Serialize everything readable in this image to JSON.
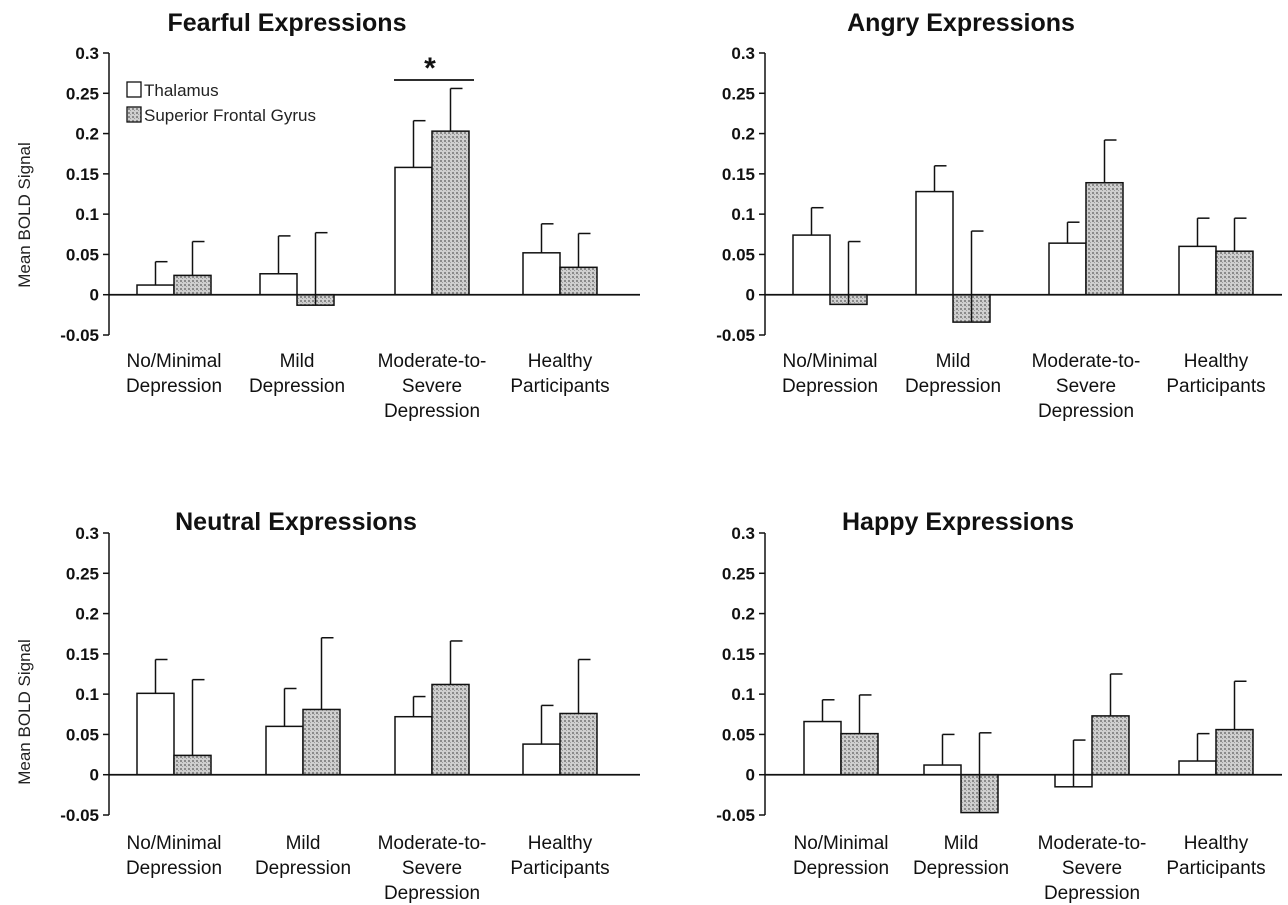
{
  "chart_data": [
    {
      "type": "bar",
      "title": "Fearful Expressions",
      "ylabel": "Mean BOLD Signal",
      "ylim": [
        -0.05,
        0.3
      ],
      "yticks": [
        "0.3",
        "0.25",
        "0.2",
        "0.15",
        "0.1",
        "0.05",
        "0",
        "-0.05"
      ],
      "categories": [
        [
          "No/Minimal",
          "Depression"
        ],
        [
          "Mild",
          "Depression"
        ],
        [
          "Moderate-to-",
          "Severe",
          "Depression"
        ],
        [
          "Healthy",
          "Participants"
        ]
      ],
      "series": [
        {
          "name": "Thalamus",
          "values": [
            0.012,
            0.026,
            0.158,
            0.052
          ],
          "errors": [
            0.029,
            0.047,
            0.058,
            0.036
          ]
        },
        {
          "name": "Superior Frontal Gyrus",
          "values": [
            0.024,
            -0.013,
            0.203,
            0.034
          ],
          "errors": [
            0.042,
            0.09,
            0.053,
            0.042
          ]
        }
      ],
      "legend": "top-left",
      "annotation": "*"
    },
    {
      "type": "bar",
      "title": "Angry Expressions",
      "ylabel": "",
      "ylim": [
        -0.05,
        0.3
      ],
      "yticks": [
        "0.3",
        "0.25",
        "0.2",
        "0.15",
        "0.1",
        "0.05",
        "0",
        "-0.05"
      ],
      "categories": [
        [
          "No/Minimal",
          "Depression"
        ],
        [
          "Mild",
          "Depression"
        ],
        [
          "Moderate-to-",
          "Severe",
          "Depression"
        ],
        [
          "Healthy",
          "Participants"
        ]
      ],
      "series": [
        {
          "name": "Thalamus",
          "values": [
            0.074,
            0.128,
            0.064,
            0.06
          ],
          "errors": [
            0.034,
            0.032,
            0.026,
            0.035
          ]
        },
        {
          "name": "Superior Frontal Gyrus",
          "values": [
            -0.012,
            -0.034,
            0.139,
            0.054
          ],
          "errors": [
            0.078,
            0.113,
            0.053,
            0.041
          ]
        }
      ]
    },
    {
      "type": "bar",
      "title": "Neutral Expressions",
      "ylabel": "Mean BOLD Signal",
      "ylim": [
        -0.05,
        0.3
      ],
      "yticks": [
        "0.3",
        "0.25",
        "0.2",
        "0.15",
        "0.1",
        "0.05",
        "0",
        "-0.05"
      ],
      "categories": [
        [
          "No/Minimal",
          "Depression"
        ],
        [
          "Mild",
          "Depression"
        ],
        [
          "Moderate-to-",
          "Severe",
          "Depression"
        ],
        [
          "Healthy",
          "Participants"
        ]
      ],
      "series": [
        {
          "name": "Thalamus",
          "values": [
            0.101,
            0.06,
            0.072,
            0.038
          ],
          "errors": [
            0.042,
            0.047,
            0.025,
            0.048
          ]
        },
        {
          "name": "Superior Frontal Gyrus",
          "values": [
            0.024,
            0.081,
            0.112,
            0.076
          ],
          "errors": [
            0.094,
            0.089,
            0.054,
            0.067
          ]
        }
      ]
    },
    {
      "type": "bar",
      "title": "Happy Expressions",
      "ylabel": "",
      "ylim": [
        -0.05,
        0.3
      ],
      "yticks": [
        "0.3",
        "0.25",
        "0.2",
        "0.15",
        "0.1",
        "0.05",
        "0",
        "-0.05"
      ],
      "categories": [
        [
          "No/Minimal",
          "Depression"
        ],
        [
          "Mild",
          "Depression"
        ],
        [
          "Moderate-to-",
          "Severe",
          "Depression"
        ],
        [
          "Healthy",
          "Participants"
        ]
      ],
      "series": [
        {
          "name": "Thalamus",
          "values": [
            0.066,
            0.012,
            -0.015,
            0.017
          ],
          "errors": [
            0.027,
            0.038,
            0.058,
            0.034
          ]
        },
        {
          "name": "Superior Frontal Gyrus",
          "values": [
            0.051,
            -0.047,
            0.073,
            0.056
          ],
          "errors": [
            0.048,
            0.099,
            0.052,
            0.06
          ]
        }
      ]
    }
  ],
  "colors": {
    "thalamus_fill": "#ffffff",
    "sfg_fill": "#c8c8c8",
    "stroke": "#111111"
  }
}
